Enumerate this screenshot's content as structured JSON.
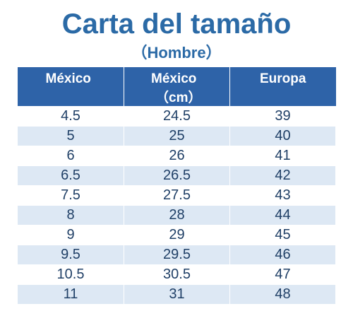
{
  "title": "Carta del tamaño",
  "subtitle": "（Hombre）",
  "table": {
    "headers": [
      "México",
      "México",
      "Europa"
    ],
    "header_unit": "（cm）",
    "rows": [
      [
        "4.5",
        "24.5",
        "39"
      ],
      [
        "5",
        "25",
        "40"
      ],
      [
        "6",
        "26",
        "41"
      ],
      [
        "6.5",
        "26.5",
        "42"
      ],
      [
        "7.5",
        "27.5",
        "43"
      ],
      [
        "8",
        "28",
        "44"
      ],
      [
        "9",
        "29",
        "45"
      ],
      [
        "9.5",
        "29.5",
        "46"
      ],
      [
        "10.5",
        "30.5",
        "47"
      ],
      [
        "11",
        "31",
        "48"
      ]
    ]
  },
  "colors": {
    "title": "#2b6aa6",
    "header_bg": "#2e63a8",
    "stripe": "#dde8f4",
    "cell_text": "#1f3f66"
  }
}
